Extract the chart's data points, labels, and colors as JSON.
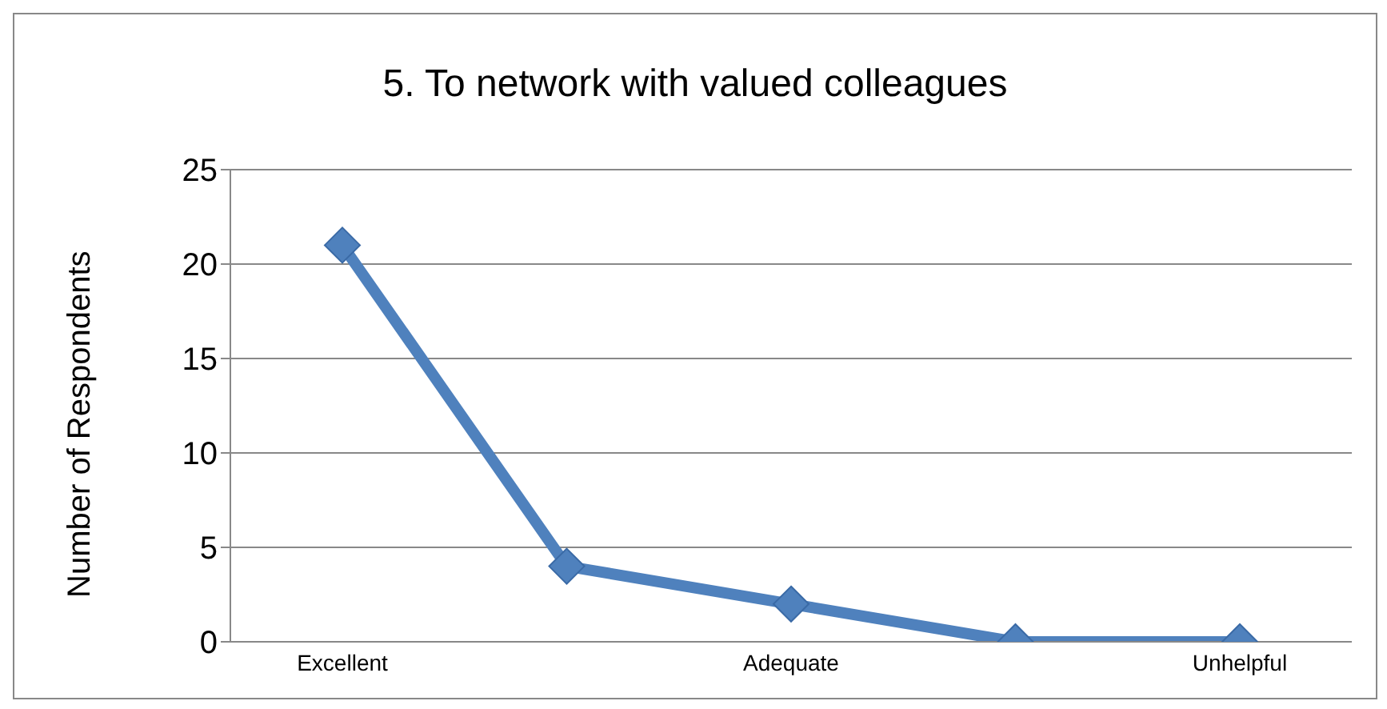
{
  "chart_data": {
    "type": "line",
    "title": "5. To network with valued colleagues",
    "ylabel": "Number of Respondents",
    "categories": [
      "Excellent",
      null,
      "Adequate",
      null,
      "Unhelpful"
    ],
    "series": [
      {
        "color": "#4f81bd",
        "values": [
          21,
          4,
          2,
          0,
          0
        ]
      }
    ],
    "ylim": [
      0,
      25
    ],
    "yticks": [
      0,
      5,
      10,
      15,
      20,
      25
    ],
    "grid": "y",
    "legend": false,
    "marker": "diamond",
    "line_style": "solid"
  }
}
